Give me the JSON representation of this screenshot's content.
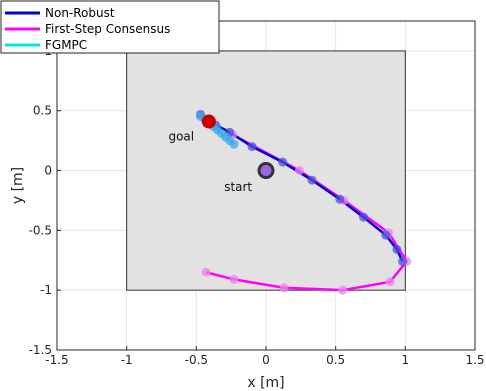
{
  "chart_data": {
    "type": "line",
    "xlabel": "x [m]",
    "ylabel": "y [m]",
    "xlim": [
      -1.5,
      1.5
    ],
    "ylim": [
      -1.5,
      1.25
    ],
    "xticks": [
      -1.5,
      -1,
      -0.5,
      0,
      0.5,
      1,
      1.5
    ],
    "yticks": [
      -1.5,
      -1,
      -0.5,
      0,
      0.5,
      1
    ],
    "xtick_labels": [
      "-1.5",
      "-1",
      "-0.5",
      "0",
      "0.5",
      "1",
      "1.5"
    ],
    "ytick_labels": [
      "-1.5",
      "-1",
      "-0.5",
      "0",
      "0.5",
      "1"
    ],
    "grid": true,
    "legend_position": "top-left",
    "region": {
      "x": [
        -1,
        1
      ],
      "y": [
        -1,
        1
      ],
      "fill": "#e2e2e2",
      "edge": "#333333"
    },
    "series": [
      {
        "name": "Non-Robust",
        "color": "#0000c8",
        "marker_color": "#5050e0",
        "x": [
          -0.47,
          -0.43,
          -0.36,
          -0.26,
          -0.1,
          0.12,
          0.33,
          0.53,
          0.7,
          0.86,
          0.94,
          0.98
        ],
        "y": [
          0.47,
          0.42,
          0.38,
          0.32,
          0.2,
          0.07,
          -0.08,
          -0.24,
          -0.39,
          -0.54,
          -0.66,
          -0.76
        ]
      },
      {
        "name": "First-Step Consensus",
        "color": "#ff00ff",
        "marker_color": "#ee80ee",
        "x": [
          -0.47,
          -0.24,
          0.24,
          0.56,
          0.88,
          1.01,
          0.89,
          0.55,
          0.13,
          -0.23,
          -0.43
        ],
        "y": [
          0.45,
          0.3,
          0.0,
          -0.25,
          -0.52,
          -0.76,
          -0.93,
          -1.0,
          -0.98,
          -0.91,
          -0.85
        ]
      },
      {
        "name": "FGMPC",
        "color": "#00e5e5",
        "marker_color": "#40a8e8",
        "x": [
          -0.47,
          -0.44,
          -0.41,
          -0.38,
          -0.35,
          -0.32,
          -0.29,
          -0.26,
          -0.23
        ],
        "y": [
          0.46,
          0.43,
          0.4,
          0.37,
          0.34,
          0.31,
          0.28,
          0.25,
          0.22
        ]
      }
    ],
    "annotations": [
      {
        "label": "goal",
        "x": -0.45,
        "y": 0.4
      },
      {
        "label": "start",
        "x": 0.0,
        "y": 0.0
      }
    ]
  }
}
